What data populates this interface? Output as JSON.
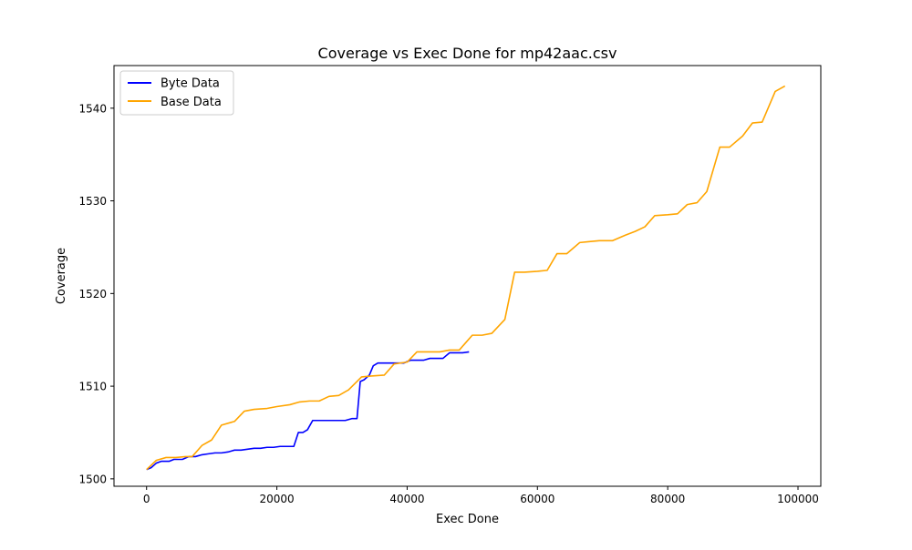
{
  "chart_data": {
    "type": "line",
    "title": "Coverage vs Exec Done for mp42aac.csv",
    "xlabel": "Exec Done",
    "ylabel": "Coverage",
    "xlim": [
      -5000,
      103500
    ],
    "ylim": [
      1499.2,
      1544.6
    ],
    "xticks": [
      0,
      20000,
      40000,
      60000,
      80000,
      100000
    ],
    "yticks": [
      1500,
      1510,
      1520,
      1530,
      1540
    ],
    "legend_position": "top-left",
    "grid": false,
    "series": [
      {
        "name": "Byte Data",
        "color": "#0000ff",
        "x": [
          0,
          700,
          1500,
          2300,
          3500,
          4200,
          5500,
          6500,
          7500,
          8500,
          9500,
          10500,
          11500,
          12500,
          13500,
          14500,
          15500,
          16500,
          17500,
          18500,
          19500,
          20500,
          21500,
          22600,
          23300,
          24000,
          24700,
          25500,
          26400,
          27500,
          28500,
          29500,
          30500,
          31500,
          32300,
          32800,
          33400,
          34200,
          34800,
          35500,
          36500,
          37500,
          38500,
          39500,
          40500,
          41500,
          42500,
          43500,
          44500,
          45500,
          46500,
          47500,
          48500,
          49500
        ],
        "y": [
          1501.0,
          1501.2,
          1501.7,
          1501.9,
          1501.9,
          1502.1,
          1502.1,
          1502.4,
          1502.4,
          1502.6,
          1502.7,
          1502.8,
          1502.8,
          1502.9,
          1503.1,
          1503.1,
          1503.2,
          1503.3,
          1503.3,
          1503.4,
          1503.4,
          1503.5,
          1503.5,
          1503.5,
          1505.0,
          1505.0,
          1505.3,
          1506.3,
          1506.3,
          1506.3,
          1506.3,
          1506.3,
          1506.3,
          1506.5,
          1506.5,
          1510.5,
          1510.7,
          1511.2,
          1512.2,
          1512.5,
          1512.5,
          1512.5,
          1512.5,
          1512.5,
          1512.8,
          1512.8,
          1512.8,
          1513.0,
          1513.0,
          1513.0,
          1513.6,
          1513.6,
          1513.6,
          1513.7
        ]
      },
      {
        "name": "Base Data",
        "color": "#ffa500",
        "x": [
          0,
          1500,
          3000,
          4500,
          6000,
          7000,
          8500,
          10000,
          11500,
          13500,
          15000,
          16500,
          18500,
          20000,
          22000,
          23500,
          25000,
          26500,
          28000,
          29500,
          31000,
          33000,
          34500,
          36500,
          38000,
          40000,
          41500,
          43000,
          45000,
          46500,
          48000,
          50000,
          51500,
          53000,
          55000,
          56500,
          58000,
          60000,
          61500,
          63000,
          64500,
          66500,
          68000,
          69500,
          71500,
          73500,
          75000,
          76500,
          78000,
          80000,
          81500,
          83000,
          84500,
          86000,
          88000,
          89500,
          91500,
          93000,
          94500,
          96500,
          98000
        ],
        "y": [
          1501.0,
          1502.0,
          1502.3,
          1502.3,
          1502.4,
          1502.4,
          1503.6,
          1504.2,
          1505.8,
          1506.2,
          1507.3,
          1507.5,
          1507.6,
          1507.8,
          1508.0,
          1508.3,
          1508.4,
          1508.4,
          1508.9,
          1509.0,
          1509.6,
          1511.0,
          1511.1,
          1511.2,
          1512.4,
          1512.6,
          1513.7,
          1513.7,
          1513.7,
          1513.9,
          1513.9,
          1515.5,
          1515.5,
          1515.7,
          1517.2,
          1522.3,
          1522.3,
          1522.4,
          1522.5,
          1524.3,
          1524.3,
          1525.5,
          1525.6,
          1525.7,
          1525.7,
          1526.3,
          1526.7,
          1527.2,
          1528.4,
          1528.5,
          1528.6,
          1529.6,
          1529.8,
          1531.0,
          1535.8,
          1535.8,
          1537.0,
          1538.4,
          1538.5,
          1541.8,
          1542.4
        ]
      }
    ]
  }
}
